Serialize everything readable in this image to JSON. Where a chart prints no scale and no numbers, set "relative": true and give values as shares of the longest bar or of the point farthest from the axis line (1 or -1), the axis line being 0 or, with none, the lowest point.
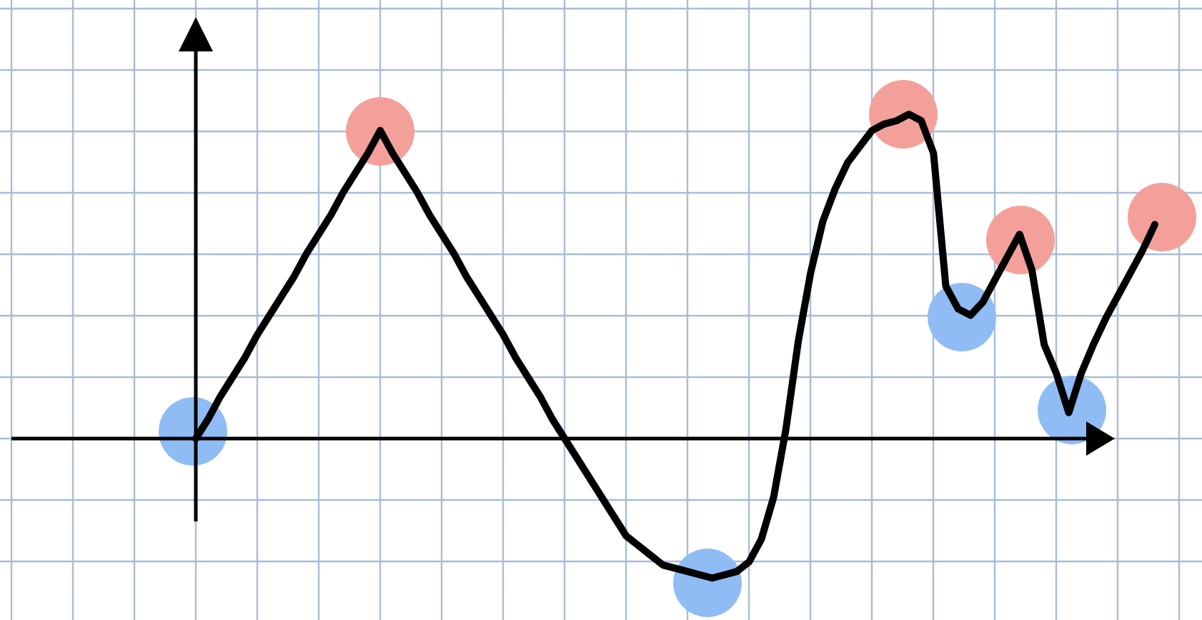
{
  "chart_data": {
    "type": "line",
    "relative": true,
    "grid": true,
    "tick_labels": false,
    "color": "#000000",
    "marker": "none",
    "line_style": "solid",
    "categories": [
      null,
      null,
      null,
      null,
      null,
      null,
      null,
      null,
      null,
      null,
      null,
      null,
      null,
      null,
      null,
      null,
      null,
      null,
      null,
      null,
      null,
      null,
      null,
      null,
      null,
      null,
      null,
      null,
      null,
      null,
      null,
      null,
      null,
      null,
      null,
      null,
      null,
      null,
      null,
      null,
      null,
      null,
      null,
      null,
      null,
      null,
      null,
      null,
      null,
      null,
      null,
      null,
      null,
      null,
      null,
      null,
      null,
      null,
      null,
      null,
      null,
      null,
      null,
      null,
      null,
      null,
      null,
      null,
      null,
      null,
      null,
      null,
      null,
      null,
      null,
      null,
      null,
      null,
      null
    ],
    "values": [
      0,
      0.06,
      0.13,
      0.19,
      0.25,
      0.32,
      0.38,
      0.44,
      0.5,
      0.57,
      0.63,
      0.69,
      0.76,
      0.82,
      0.88,
      0.95,
      0.88,
      0.82,
      0.76,
      0.69,
      0.63,
      0.57,
      0.5,
      0.44,
      0.38,
      0.32,
      0.25,
      0.19,
      0.13,
      0.06,
      0,
      -0.06,
      -0.12,
      -0.18,
      -0.24,
      -0.3,
      -0.33,
      -0.36,
      -0.39,
      -0.4,
      -0.41,
      -0.42,
      -0.43,
      -0.42,
      -0.41,
      -0.38,
      -0.31,
      -0.18,
      0.03,
      0.3,
      0.51,
      0.67,
      0.77,
      0.85,
      0.9,
      0.95,
      0.97,
      0.98,
      1,
      0.98,
      0.88,
      0.47,
      0.4,
      0.38,
      0.42,
      0.49,
      0.56,
      0.63,
      0.52,
      0.29,
      0.2,
      0.08,
      0.2,
      0.29,
      0.37,
      0.44,
      0.51,
      0.58,
      0.66
    ]
  }
}
